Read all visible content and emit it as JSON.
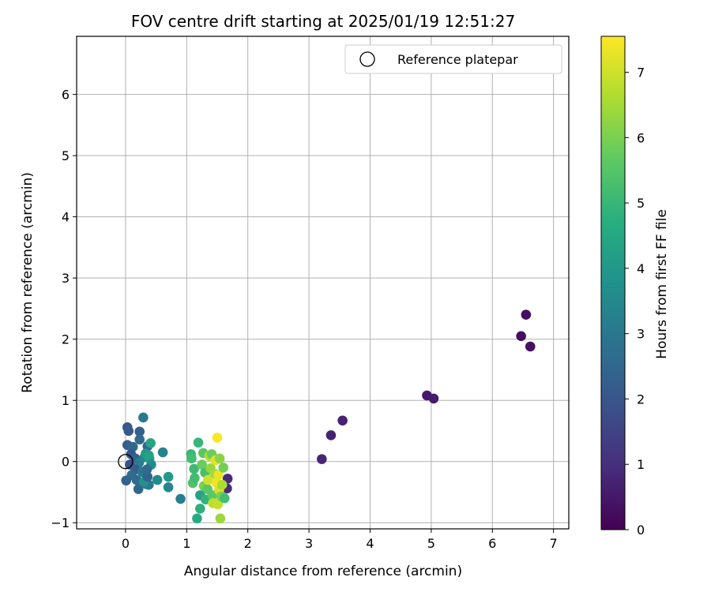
{
  "chart_data": {
    "type": "scatter",
    "title": "FOV centre drift starting at 2025/01/19 12:51:27",
    "xlabel": "Angular distance from reference (arcmin)",
    "ylabel": "Rotation from reference (arcmin)",
    "xlim": [
      -0.8,
      7.25
    ],
    "ylim": [
      -1.1,
      6.95
    ],
    "xticks": [
      0,
      1,
      2,
      3,
      4,
      5,
      6,
      7
    ],
    "yticks": [
      -1,
      0,
      1,
      2,
      3,
      4,
      5,
      6
    ],
    "grid": true,
    "legend": {
      "position": "top-right",
      "entries": [
        "Reference platepar"
      ]
    },
    "reference_point": {
      "x": 0,
      "y": 0,
      "label": "Reference platepar"
    },
    "colorbar": {
      "label": "Hours from first FF file",
      "colormap": "viridis",
      "range": [
        0,
        7.55
      ],
      "ticks": [
        0,
        1,
        2,
        3,
        4,
        5,
        6,
        7
      ]
    },
    "points": [
      {
        "x": 6.55,
        "y": 2.4,
        "c": 0.3
      },
      {
        "x": 6.47,
        "y": 2.05,
        "c": 0.3
      },
      {
        "x": 6.62,
        "y": 1.88,
        "c": 0.35
      },
      {
        "x": 4.93,
        "y": 1.08,
        "c": 0.5
      },
      {
        "x": 5.04,
        "y": 1.03,
        "c": 0.55
      },
      {
        "x": 3.55,
        "y": 0.67,
        "c": 0.7
      },
      {
        "x": 3.36,
        "y": 0.43,
        "c": 0.75
      },
      {
        "x": 3.21,
        "y": 0.04,
        "c": 0.8
      },
      {
        "x": 1.67,
        "y": -0.28,
        "c": 0.9
      },
      {
        "x": 1.66,
        "y": -0.44,
        "c": 0.9
      },
      {
        "x": 0.03,
        "y": 0.56,
        "c": 2.0
      },
      {
        "x": 0.05,
        "y": 0.5,
        "c": 2.1
      },
      {
        "x": 0.23,
        "y": 0.49,
        "c": 2.3
      },
      {
        "x": 0.29,
        "y": 0.72,
        "c": 3.0
      },
      {
        "x": 0.03,
        "y": 0.27,
        "c": 2.2
      },
      {
        "x": 0.12,
        "y": 0.24,
        "c": 2.5
      },
      {
        "x": 0.23,
        "y": 0.36,
        "c": 2.6
      },
      {
        "x": 0.36,
        "y": 0.25,
        "c": 2.4
      },
      {
        "x": 0.09,
        "y": 0.12,
        "c": 2.0
      },
      {
        "x": 0.16,
        "y": 0.05,
        "c": 2.3
      },
      {
        "x": 0.07,
        "y": -0.05,
        "c": 1.9
      },
      {
        "x": 0.22,
        "y": -0.02,
        "c": 3.2
      },
      {
        "x": 0.31,
        "y": 0.07,
        "c": 3.5
      },
      {
        "x": 0.39,
        "y": 0.05,
        "c": 4.2
      },
      {
        "x": 0.42,
        "y": -0.05,
        "c": 3.6
      },
      {
        "x": 0.41,
        "y": 0.3,
        "c": 4.4
      },
      {
        "x": 0.33,
        "y": 0.13,
        "c": 4.0
      },
      {
        "x": 0.38,
        "y": 0.1,
        "c": 4.3
      },
      {
        "x": 0.16,
        "y": -0.13,
        "c": 2.2
      },
      {
        "x": 0.27,
        "y": -0.17,
        "c": 3.0
      },
      {
        "x": 0.1,
        "y": -0.22,
        "c": 2.7
      },
      {
        "x": 0.18,
        "y": -0.3,
        "c": 2.6
      },
      {
        "x": 0.01,
        "y": -0.31,
        "c": 2.4
      },
      {
        "x": 0.34,
        "y": -0.37,
        "c": 3.4
      },
      {
        "x": 0.38,
        "y": -0.38,
        "c": 3.1
      },
      {
        "x": 0.21,
        "y": -0.45,
        "c": 2.5
      },
      {
        "x": 0.3,
        "y": -0.33,
        "c": 3.8
      },
      {
        "x": 0.36,
        "y": -0.25,
        "c": 2.4
      },
      {
        "x": 0.35,
        "y": -0.13,
        "c": 2.6
      },
      {
        "x": 0.52,
        "y": -0.3,
        "c": 3.6
      },
      {
        "x": 0.61,
        "y": 0.15,
        "c": 3.3
      },
      {
        "x": 0.7,
        "y": -0.25,
        "c": 4.0
      },
      {
        "x": 0.7,
        "y": -0.42,
        "c": 3.4
      },
      {
        "x": 0.9,
        "y": -0.61,
        "c": 3.2
      },
      {
        "x": 1.07,
        "y": 0.12,
        "c": 5.0
      },
      {
        "x": 1.08,
        "y": 0.05,
        "c": 5.2
      },
      {
        "x": 1.12,
        "y": -0.12,
        "c": 5.1
      },
      {
        "x": 1.1,
        "y": -0.35,
        "c": 5.4
      },
      {
        "x": 1.13,
        "y": -0.27,
        "c": 5.2
      },
      {
        "x": 1.19,
        "y": 0.31,
        "c": 5.0
      },
      {
        "x": 1.17,
        "y": -0.93,
        "c": 4.6
      },
      {
        "x": 1.22,
        "y": -0.77,
        "c": 4.8
      },
      {
        "x": 1.22,
        "y": -0.55,
        "c": 4.3
      },
      {
        "x": 1.27,
        "y": 0.14,
        "c": 5.6
      },
      {
        "x": 1.25,
        "y": -0.05,
        "c": 5.8
      },
      {
        "x": 1.3,
        "y": -0.18,
        "c": 5.3
      },
      {
        "x": 1.28,
        "y": -0.4,
        "c": 6.0
      },
      {
        "x": 1.31,
        "y": -0.62,
        "c": 4.9
      },
      {
        "x": 1.34,
        "y": -0.45,
        "c": 5.6
      },
      {
        "x": 1.37,
        "y": 0.09,
        "c": 6.7
      },
      {
        "x": 1.35,
        "y": -0.3,
        "c": 7.0
      },
      {
        "x": 1.39,
        "y": -0.11,
        "c": 6.3
      },
      {
        "x": 1.41,
        "y": 0.12,
        "c": 5.8
      },
      {
        "x": 1.42,
        "y": -0.55,
        "c": 5.6
      },
      {
        "x": 1.43,
        "y": -0.68,
        "c": 6.8
      },
      {
        "x": 1.46,
        "y": -0.2,
        "c": 6.5
      },
      {
        "x": 1.47,
        "y": 0.02,
        "c": 7.2
      },
      {
        "x": 1.49,
        "y": -0.35,
        "c": 7.4
      },
      {
        "x": 1.5,
        "y": 0.39,
        "c": 7.5
      },
      {
        "x": 1.51,
        "y": -0.7,
        "c": 6.9
      },
      {
        "x": 1.52,
        "y": -0.22,
        "c": 7.3
      },
      {
        "x": 1.53,
        "y": -0.47,
        "c": 7.1
      },
      {
        "x": 1.54,
        "y": 0.05,
        "c": 6.2
      },
      {
        "x": 1.55,
        "y": -0.93,
        "c": 6.4
      },
      {
        "x": 1.56,
        "y": -0.57,
        "c": 6.0
      },
      {
        "x": 1.58,
        "y": -0.38,
        "c": 6.6
      },
      {
        "x": 1.6,
        "y": -0.1,
        "c": 5.9
      },
      {
        "x": 1.62,
        "y": -0.6,
        "c": 5.2
      }
    ]
  }
}
